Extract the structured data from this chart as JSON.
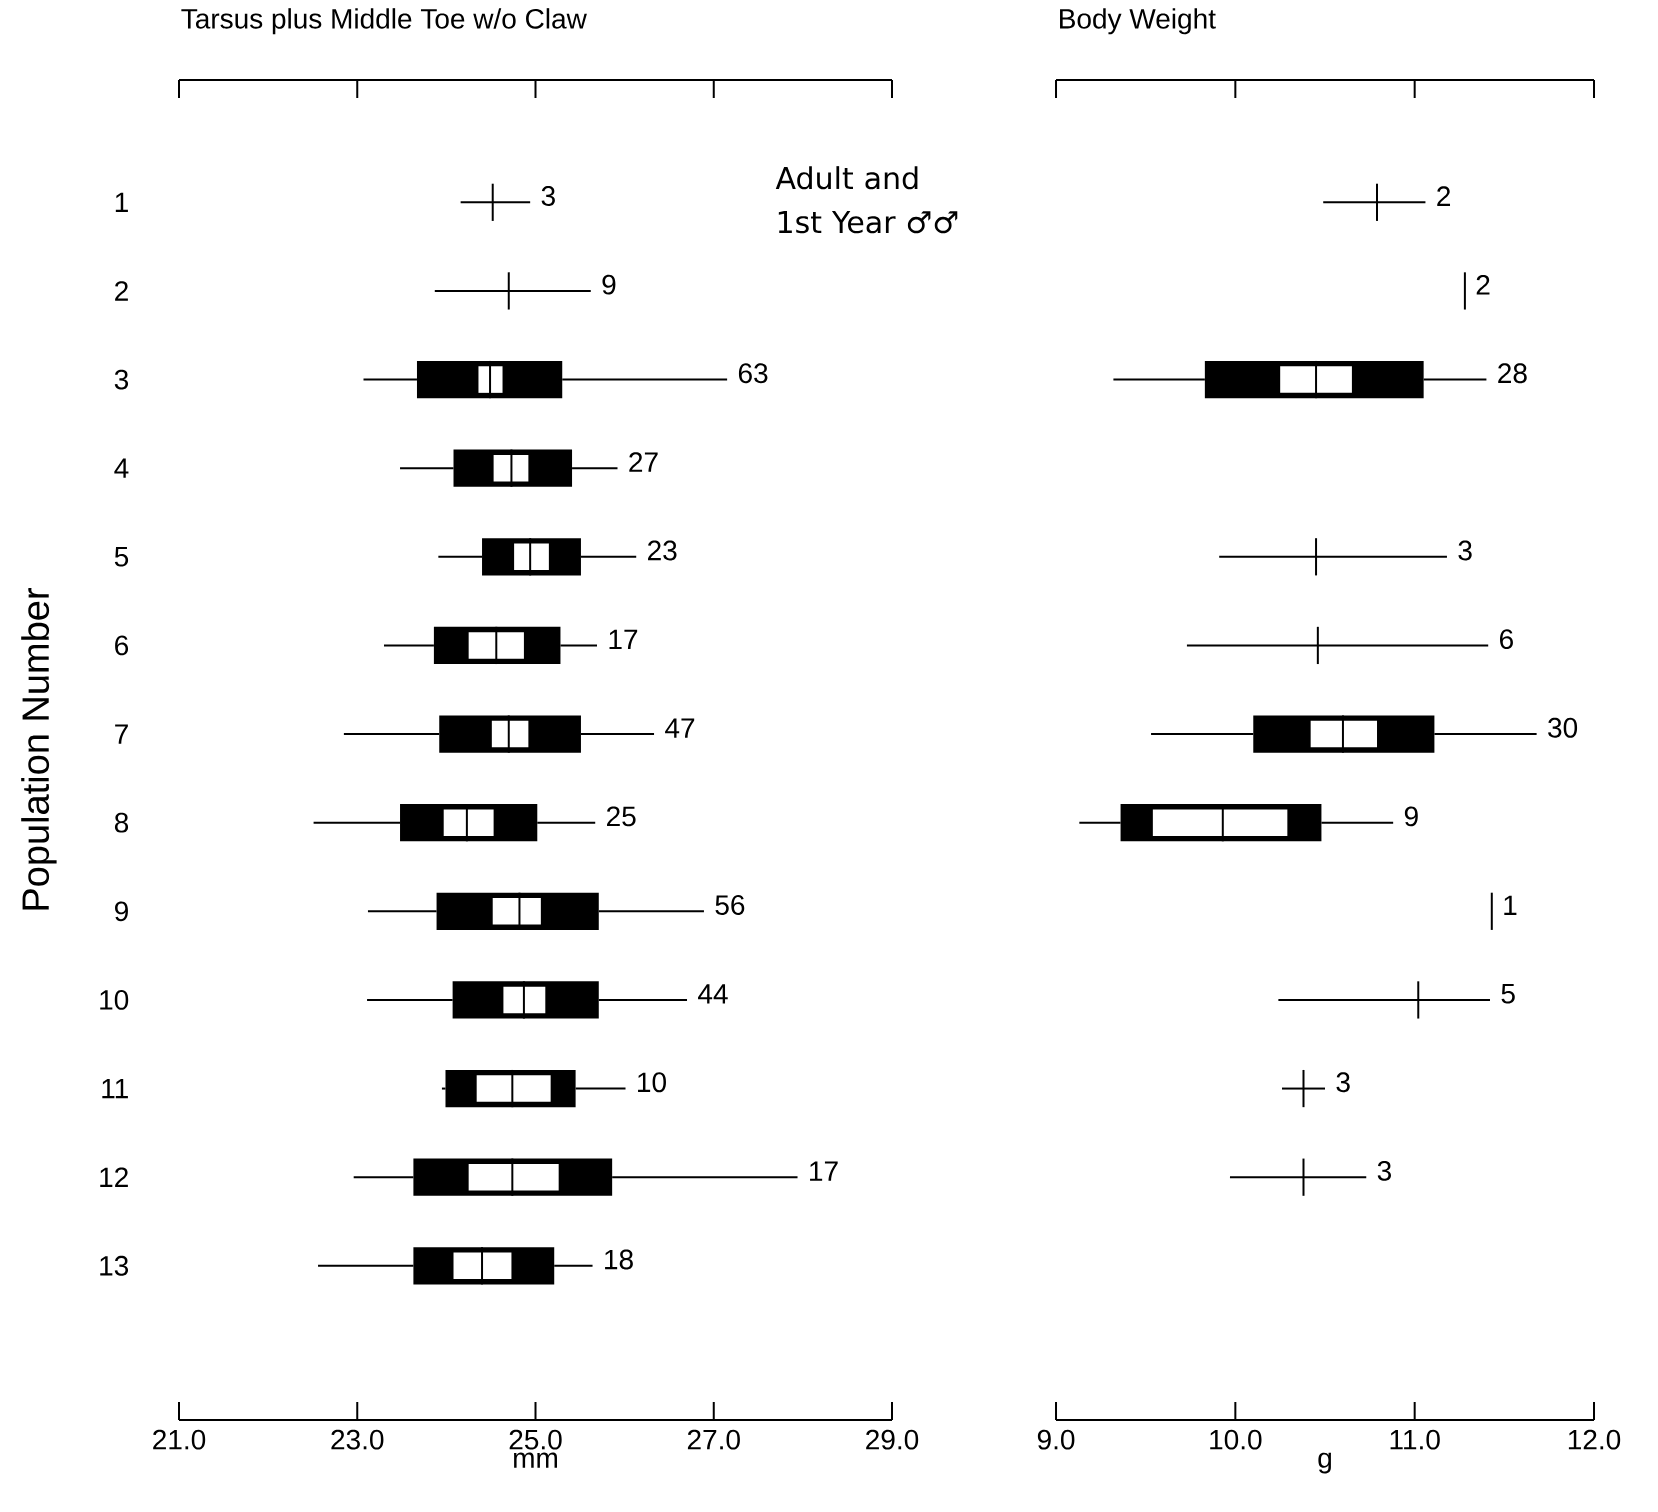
{
  "chart_data": [
    {
      "type": "box",
      "orientation": "horizontal",
      "title": "Tarsus plus Middle Toe w/o Claw",
      "xlabel": "mm",
      "ylabel": "Population Number",
      "categories": [
        "1",
        "2",
        "3",
        "4",
        "5",
        "6",
        "7",
        "8",
        "9",
        "10",
        "11",
        "12",
        "13"
      ],
      "xlim": [
        21,
        29
      ],
      "xticks": [
        {
          "value": 21,
          "label": "21.0"
        },
        {
          "value": 23,
          "label": "23.0"
        },
        {
          "value": 25,
          "label": "25.0"
        },
        {
          "value": 27,
          "label": "27.0"
        },
        {
          "value": 29,
          "label": "29.0"
        }
      ],
      "series": [
        {
          "type": "box",
          "color": "#000000",
          "boxes": [
            {
              "low": 24.16,
              "q1": 24.52,
              "median": 24.52,
              "q3": 24.52,
              "high": 24.94
            },
            {
              "low": 23.87,
              "q1": 24.7,
              "median": 24.7,
              "q3": 24.7,
              "high": 25.62
            },
            {
              "low": 23.07,
              "q1": 23.67,
              "median": 24.49,
              "q3": 25.3,
              "high": 27.15
            },
            {
              "low": 23.48,
              "q1": 24.08,
              "median": 24.73,
              "q3": 25.41,
              "high": 25.92
            },
            {
              "low": 23.91,
              "q1": 24.4,
              "median": 24.94,
              "q3": 25.51,
              "high": 26.13
            },
            {
              "low": 23.3,
              "q1": 23.86,
              "median": 24.56,
              "q3": 25.28,
              "high": 25.69
            },
            {
              "low": 22.85,
              "q1": 23.92,
              "median": 24.7,
              "q3": 25.51,
              "high": 26.33
            },
            {
              "low": 22.51,
              "q1": 23.48,
              "median": 24.23,
              "q3": 25.02,
              "high": 25.67
            },
            {
              "low": 23.12,
              "q1": 23.89,
              "median": 24.82,
              "q3": 25.71,
              "high": 26.89
            },
            {
              "low": 23.11,
              "q1": 24.07,
              "median": 24.87,
              "q3": 25.71,
              "high": 26.7
            },
            {
              "low": 23.95,
              "q1": 23.99,
              "median": 24.74,
              "q3": 25.45,
              "high": 26.01
            },
            {
              "low": 22.96,
              "q1": 23.63,
              "median": 24.74,
              "q3": 25.86,
              "high": 27.94
            },
            {
              "low": 22.56,
              "q1": 23.63,
              "median": 24.4,
              "q3": 25.21,
              "high": 25.64
            }
          ]
        },
        {
          "type": "bar",
          "color": "#ffffff",
          "base": [
            null,
            null,
            24.36,
            24.53,
            24.76,
            24.25,
            24.51,
            23.97,
            24.52,
            24.64,
            24.34,
            24.25,
            24.08
          ],
          "values": [
            null,
            null,
            0.27,
            0.39,
            0.39,
            0.62,
            0.41,
            0.56,
            0.54,
            0.47,
            0.83,
            1.01,
            0.65
          ]
        }
      ],
      "annotations": [
        {
          "text": "3",
          "x": 24.94,
          "y": "1"
        },
        {
          "text": "9",
          "x": 25.62,
          "y": "2"
        },
        {
          "text": "63",
          "x": 27.15,
          "y": "3"
        },
        {
          "text": "27",
          "x": 25.92,
          "y": "4"
        },
        {
          "text": "23",
          "x": 26.13,
          "y": "5"
        },
        {
          "text": "17",
          "x": 25.69,
          "y": "6"
        },
        {
          "text": "47",
          "x": 26.33,
          "y": "7"
        },
        {
          "text": "25",
          "x": 25.67,
          "y": "8"
        },
        {
          "text": "56",
          "x": 26.89,
          "y": "9"
        },
        {
          "text": "44",
          "x": 26.7,
          "y": "10"
        },
        {
          "text": "10",
          "x": 26.01,
          "y": "11"
        },
        {
          "text": "17",
          "x": 27.94,
          "y": "12"
        },
        {
          "text": "18",
          "x": 25.64,
          "y": "13"
        },
        "Adult and 1st Year ♂♂"
      ]
    },
    {
      "type": "box",
      "orientation": "horizontal",
      "title": "Body Weight",
      "xlabel": "g",
      "tick_labels": "x",
      "categories": [
        "1",
        "2",
        "3",
        "4",
        "5",
        "6",
        "7",
        "8",
        "9",
        "10",
        "11",
        "12",
        "13"
      ],
      "xlim": [
        9,
        12
      ],
      "xticks": [
        {
          "value": 9,
          "label": "9.0"
        },
        {
          "value": 10,
          "label": "10.0"
        },
        {
          "value": 11,
          "label": "11.0"
        },
        {
          "value": 12,
          "label": "12.0"
        }
      ],
      "series": [
        {
          "type": "box",
          "color": "#000000",
          "boxes": [
            {
              "low": 10.49,
              "q1": 10.79,
              "median": 10.79,
              "q3": 10.79,
              "high": 11.06
            },
            {
              "low": 11.28,
              "q1": 11.28,
              "median": 11.28,
              "q3": 11.28,
              "high": 11.28
            },
            {
              "low": 9.32,
              "q1": 9.83,
              "median": 10.45,
              "q3": 11.05,
              "high": 11.4
            },
            null,
            {
              "low": 9.91,
              "q1": 10.45,
              "median": 10.45,
              "q3": 10.45,
              "high": 11.18
            },
            {
              "low": 9.73,
              "q1": 10.46,
              "median": 10.46,
              "q3": 10.46,
              "high": 11.41
            },
            {
              "low": 9.53,
              "q1": 10.1,
              "median": 10.6,
              "q3": 11.11,
              "high": 11.68
            },
            {
              "low": 9.13,
              "q1": 9.36,
              "median": 9.93,
              "q3": 10.48,
              "high": 10.88
            },
            {
              "low": 11.43,
              "q1": 11.43,
              "median": 11.43,
              "q3": 11.43,
              "high": 11.43
            },
            {
              "low": 10.24,
              "q1": 11.02,
              "median": 11.02,
              "q3": 11.02,
              "high": 11.42
            },
            {
              "low": 10.26,
              "q1": 10.38,
              "median": 10.38,
              "q3": 10.38,
              "high": 10.5
            },
            {
              "low": 9.97,
              "q1": 10.38,
              "median": 10.38,
              "q3": 10.38,
              "high": 10.73
            },
            null
          ]
        },
        {
          "type": "bar",
          "color": "#ffffff",
          "base": [
            null,
            null,
            10.25,
            null,
            null,
            null,
            10.42,
            9.54,
            null,
            null,
            null,
            null,
            null
          ],
          "values": [
            null,
            null,
            0.4,
            null,
            null,
            null,
            0.37,
            0.75,
            null,
            null,
            null,
            null,
            null
          ]
        }
      ],
      "annotations": [
        {
          "text": "2",
          "x": 11.06,
          "y": "1"
        },
        {
          "text": "2",
          "x": 11.28,
          "y": "2"
        },
        {
          "text": "28",
          "x": 11.4,
          "y": "3"
        },
        {
          "text": "3",
          "x": 11.18,
          "y": "5"
        },
        {
          "text": "6",
          "x": 11.41,
          "y": "6"
        },
        {
          "text": "30",
          "x": 11.68,
          "y": "7"
        },
        {
          "text": "9",
          "x": 10.88,
          "y": "8"
        },
        {
          "text": "1",
          "x": 11.43,
          "y": "9"
        },
        {
          "text": "5",
          "x": 11.42,
          "y": "10"
        },
        {
          "text": "3",
          "x": 10.5,
          "y": "11"
        },
        {
          "text": "3",
          "x": 10.73,
          "y": "12"
        }
      ]
    }
  ]
}
